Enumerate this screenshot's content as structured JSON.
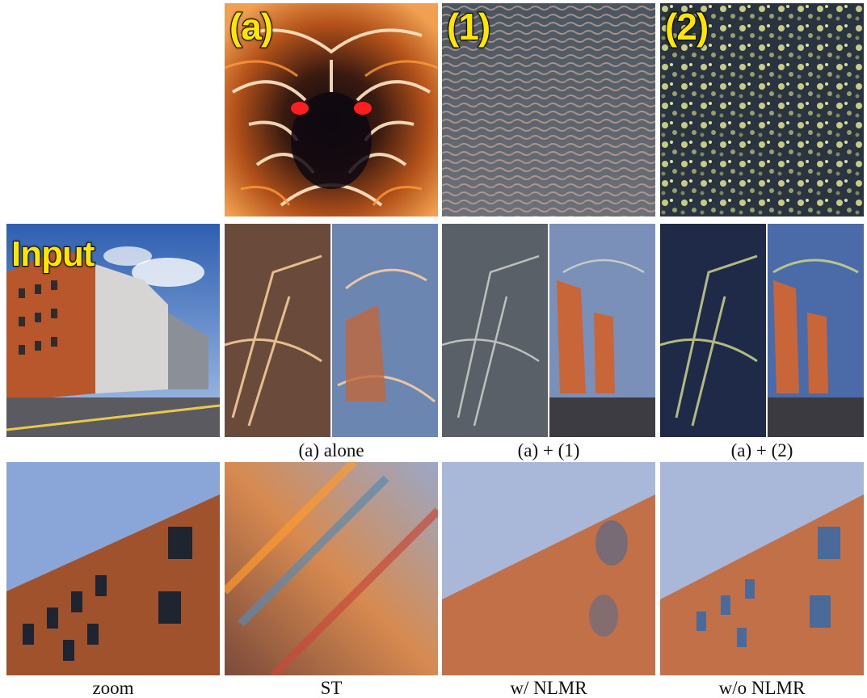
{
  "panels": {
    "style_a": {
      "tag": "(a)"
    },
    "texture_1": {
      "tag": "(1)"
    },
    "texture_2": {
      "tag": "(2)"
    },
    "input": {
      "tag": "Input"
    }
  },
  "captions": {
    "a_alone": "(a) alone",
    "a_plus_1": "(a) + (1)",
    "a_plus_2": "(a) + (2)",
    "zoom": "zoom",
    "st": "ST",
    "with_nlmr": "w/ NLMR",
    "without_nlmr": "w/o NLMR"
  },
  "colors": {
    "tag_fill": "#ffe600",
    "tag_stroke": "#111111"
  }
}
